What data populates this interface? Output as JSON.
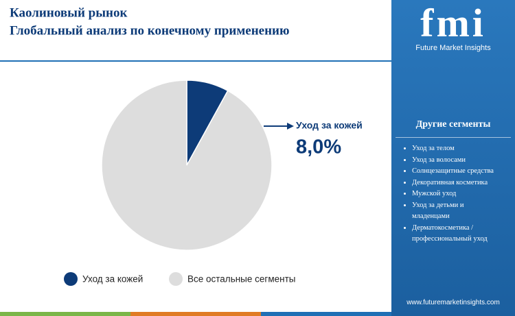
{
  "chart_data": {
    "type": "pie",
    "title": "Каолиновый рынок",
    "subtitle": "Глобальный анализ по конечному применению",
    "categories": [
      "Уход за кожей",
      "Все остальные сегменты"
    ],
    "values": [
      8,
      92
    ],
    "value_labels": [
      "8,0%",
      null
    ],
    "colors": [
      "#0d3b78",
      "#dddddd"
    ]
  },
  "sidebar": {
    "logo": "fmi",
    "brand": "Future Market Insights",
    "heading": "Другие сегменты",
    "items": [
      "Уход за телом",
      "Уход за волосами",
      "Солнцезащитные средства",
      "Декоративная косметика",
      "Мужской уход",
      "Уход за детьми и младенцами",
      "Дерматокосметика / профессиональный уход"
    ],
    "website": "www.futuremarketinsights.com"
  }
}
